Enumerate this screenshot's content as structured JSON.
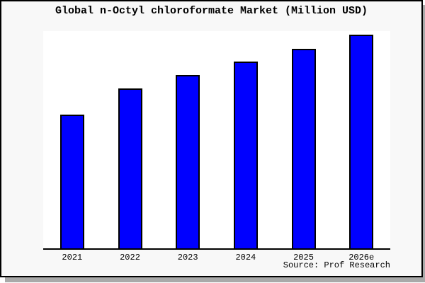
{
  "chart_data": {
    "type": "bar",
    "title": "Global n-Octyl chloroformate Market (Million USD)",
    "categories": [
      "2021",
      "2022",
      "2023",
      "2024",
      "2025",
      "2026e"
    ],
    "values": [
      62.6,
      74.8,
      81.1,
      87.4,
      93.4,
      100
    ],
    "values_note": "relative bar heights as % of tallest bar (2026e); no y-axis scale shown in chart",
    "xlabel": "",
    "ylabel": "",
    "ylim": [
      0,
      101.7
    ],
    "gridlines": false,
    "legend": false,
    "y_axis_visible": false,
    "source": "Source: Prof Research",
    "colors": {
      "bar_fill": "#0000ff",
      "bar_border": "#000000",
      "plot_background": "#ffffff",
      "frame_background": "#f8f8f8",
      "frame_border": "#000000",
      "shadow": "#a9a9a9",
      "text": "#000000"
    }
  }
}
